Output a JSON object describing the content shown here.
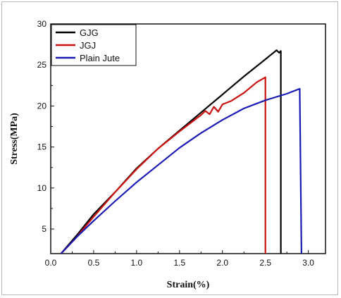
{
  "chart_data": {
    "type": "line",
    "xlabel": "Strain(%)",
    "ylabel": "Stress(MPa)",
    "xlim": [
      0.0,
      3.2
    ],
    "ylim": [
      2,
      30
    ],
    "xticks": [
      "0.0",
      "0.5",
      "1.0",
      "1.5",
      "2.0",
      "2.5",
      "3.0"
    ],
    "yticks": [
      "5",
      "10",
      "15",
      "20",
      "25",
      "30"
    ],
    "legend_position": "top-left",
    "series": [
      {
        "name": "GJG",
        "color": "#000000",
        "points": [
          [
            0.12,
            2.0
          ],
          [
            0.3,
            4.2
          ],
          [
            0.5,
            6.8
          ],
          [
            0.75,
            9.5
          ],
          [
            1.0,
            12.4
          ],
          [
            1.25,
            14.8
          ],
          [
            1.5,
            17.0
          ],
          [
            1.75,
            19.2
          ],
          [
            2.0,
            21.4
          ],
          [
            2.25,
            23.6
          ],
          [
            2.5,
            25.7
          ],
          [
            2.63,
            26.8
          ],
          [
            2.66,
            26.5
          ],
          [
            2.68,
            26.7
          ],
          [
            2.68,
            2.0
          ]
        ]
      },
      {
        "name": "JGJ",
        "color": "#cc1111",
        "points": [
          [
            0.12,
            2.0
          ],
          [
            0.3,
            4.0
          ],
          [
            0.5,
            6.5
          ],
          [
            0.75,
            9.5
          ],
          [
            1.0,
            12.3
          ],
          [
            1.25,
            14.8
          ],
          [
            1.5,
            16.9
          ],
          [
            1.75,
            18.9
          ],
          [
            1.8,
            19.4
          ],
          [
            1.85,
            19.0
          ],
          [
            1.9,
            19.9
          ],
          [
            1.95,
            19.3
          ],
          [
            2.0,
            20.2
          ],
          [
            2.1,
            20.6
          ],
          [
            2.25,
            21.6
          ],
          [
            2.4,
            22.9
          ],
          [
            2.5,
            23.5
          ],
          [
            2.5,
            2.0
          ]
        ]
      },
      {
        "name": "Plain Jute",
        "color": "#1a1ab4",
        "points": [
          [
            0.12,
            2.0
          ],
          [
            0.3,
            4.0
          ],
          [
            0.5,
            6.0
          ],
          [
            0.75,
            8.4
          ],
          [
            1.0,
            10.7
          ],
          [
            1.25,
            12.8
          ],
          [
            1.5,
            14.9
          ],
          [
            1.75,
            16.7
          ],
          [
            2.0,
            18.3
          ],
          [
            2.25,
            19.7
          ],
          [
            2.5,
            20.7
          ],
          [
            2.75,
            21.5
          ],
          [
            2.9,
            22.1
          ],
          [
            2.92,
            2.0
          ]
        ]
      }
    ]
  }
}
